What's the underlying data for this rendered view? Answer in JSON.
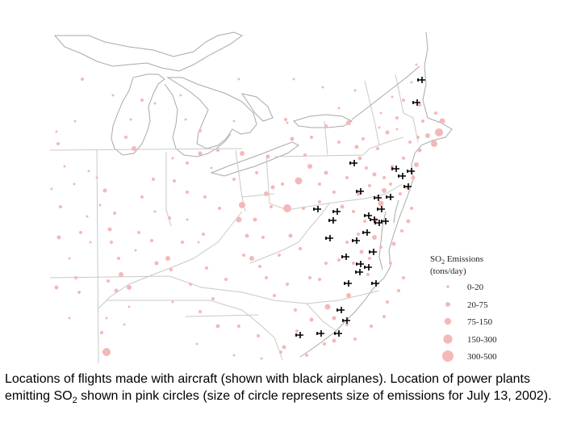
{
  "legend": {
    "title_prefix": "SO",
    "title_subscript": "2",
    "title_suffix": " Emissions",
    "units": "(tons/day)",
    "color": "#f4b8b8",
    "bins": [
      "0-20",
      "20-75",
      "75-150",
      "150-300",
      "300-500"
    ]
  },
  "colors": {
    "plant": "#f4b8b8",
    "airplane": "#000000",
    "outline": "#c9c9c9"
  },
  "markers": {
    "plant_icon": "pink-circle",
    "flight_icon": "black-airplane-icon",
    "power_plant_count_approx": 210,
    "flight_count": 33
  },
  "caption": {
    "part1": "Locations of flights made with aircraft (shown with black airplanes).  Location of power plants emitting SO",
    "sub": "2",
    "part2": " shown in pink circles (size of circle represents size of emissions for July 13, 2002)."
  }
}
